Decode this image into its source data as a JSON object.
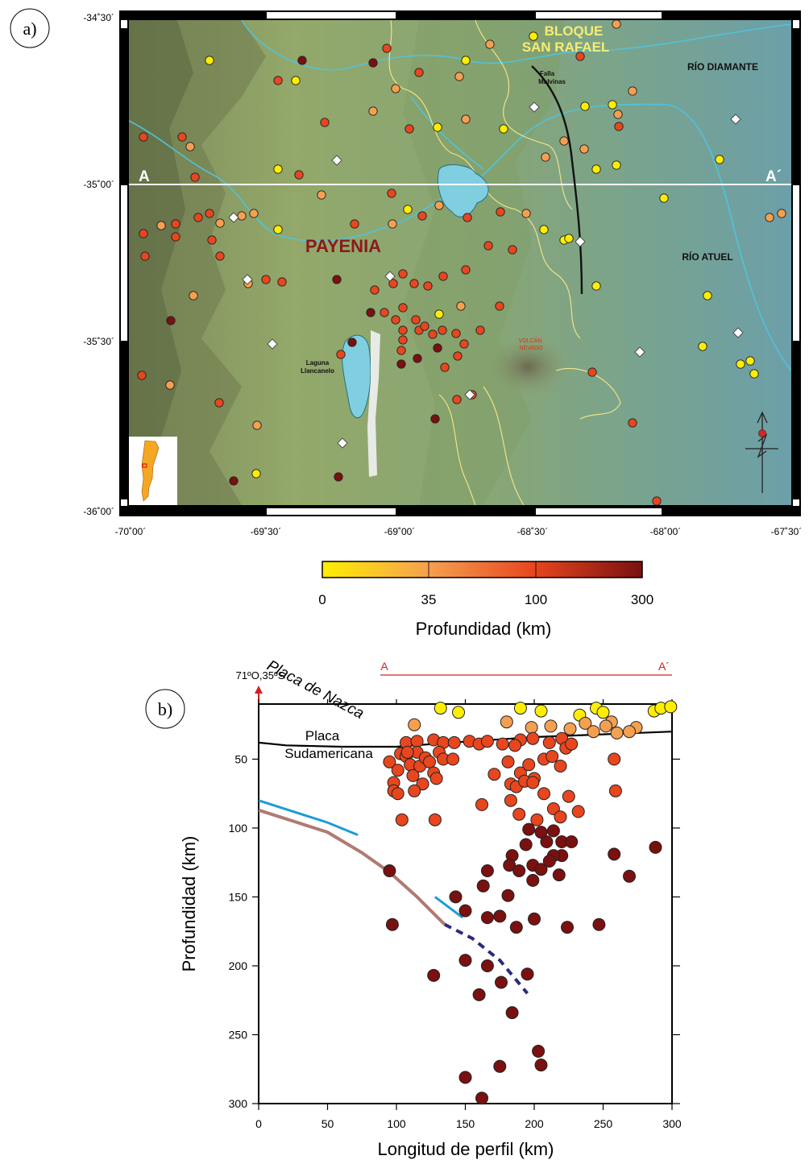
{
  "panel_a": {
    "label": "a)",
    "lat_ticks": [
      "-34˚30´",
      "-35˚00´",
      "-35˚30´",
      "-36˚00´"
    ],
    "lon_ticks": [
      "-70˚00´",
      "-69˚30´",
      "-69˚00´",
      "-68˚30´",
      "-68˚00´",
      "-67˚30´"
    ],
    "place_labels": {
      "bloque_line1": "BLOQUE",
      "bloque_line2": "SAN RAFAEL",
      "rio_diamante": "RÍO DIAMANTE",
      "falla_line1": "Falla",
      "falla_line2": "Malvinas",
      "payenia": "PAYENIA",
      "rio_atuel": "RÍO ATUEL",
      "volcan_line1": "VOLCÁN",
      "volcan_line2": "NEVADO",
      "laguna_line1": "Laguna",
      "laguna_line2": "Llancanelo",
      "a_start": "A",
      "a_end": "A´"
    },
    "colors": {
      "rivers": "#4fc3dc",
      "outcrop_lines": "#f5e78a",
      "lake": "#7fcfe0",
      "label_yellow": "#f7ec72",
      "label_red": "#8b1a1a",
      "volcano_label": "#e03010"
    },
    "colorbar": {
      "ticks": [
        "0",
        "35",
        "100",
        "300"
      ],
      "title": "Profundidad (km)",
      "colors": [
        "#ffee00",
        "#f5a050",
        "#e8461e",
        "#7a1010"
      ]
    },
    "diamond_marker": "white-diamond"
  },
  "panel_b": {
    "label": "b)",
    "origin_label": "71ºO,35ºS",
    "profile_a": "A",
    "profile_a_end": "A´",
    "plate_south_line1": "Placa",
    "plate_south_line2": "Sudamericana",
    "plate_nazca": "Placa de Nazca",
    "colors": {
      "profile_line": "#d42020",
      "origin_arrow": "#d42020",
      "moho": "#000000",
      "nazca": "#b07a72",
      "blue_slab": "#1e9bd7",
      "dashed_slab": "#2e2a7a"
    }
  },
  "chart_data": {
    "type": "scatter",
    "xlabel": "Longitud de perfil (km)",
    "ylabel": "Profundidad (km)",
    "xlim": [
      0,
      300
    ],
    "ylim": [
      300,
      10
    ],
    "x_ticks": [
      0,
      50,
      100,
      150,
      200,
      250,
      300
    ],
    "y_ticks": [
      50,
      100,
      150,
      200,
      250,
      300
    ],
    "points": [
      [
        132,
        13
      ],
      [
        145,
        16
      ],
      [
        190,
        13
      ],
      [
        205,
        15
      ],
      [
        233,
        18
      ],
      [
        245,
        13
      ],
      [
        250,
        16
      ],
      [
        256,
        23
      ],
      [
        287,
        15
      ],
      [
        292,
        13
      ],
      [
        299,
        12
      ],
      [
        113,
        25
      ],
      [
        180,
        23
      ],
      [
        198,
        27
      ],
      [
        212,
        26
      ],
      [
        226,
        28
      ],
      [
        237,
        24
      ],
      [
        252,
        26
      ],
      [
        274,
        27
      ],
      [
        243,
        30
      ],
      [
        260,
        31
      ],
      [
        269,
        30
      ],
      [
        107,
        38
      ],
      [
        115,
        37
      ],
      [
        127,
        36
      ],
      [
        134,
        38
      ],
      [
        142,
        38
      ],
      [
        153,
        37
      ],
      [
        160,
        39
      ],
      [
        166,
        37
      ],
      [
        177,
        39
      ],
      [
        190,
        36
      ],
      [
        199,
        35
      ],
      [
        211,
        38
      ],
      [
        220,
        35
      ],
      [
        186,
        40
      ],
      [
        95,
        52
      ],
      [
        98,
        67
      ],
      [
        101,
        58
      ],
      [
        103,
        46
      ],
      [
        107,
        48
      ],
      [
        110,
        54
      ],
      [
        112,
        62
      ],
      [
        115,
        45
      ],
      [
        117,
        55
      ],
      [
        119,
        68
      ],
      [
        121,
        49
      ],
      [
        124,
        52
      ],
      [
        127,
        60
      ],
      [
        129,
        64
      ],
      [
        131,
        45
      ],
      [
        134,
        50
      ],
      [
        141,
        50
      ],
      [
        98,
        73
      ],
      [
        101,
        75
      ],
      [
        108,
        45
      ],
      [
        113,
        73
      ],
      [
        171,
        61
      ],
      [
        181,
        52
      ],
      [
        190,
        60
      ],
      [
        196,
        54
      ],
      [
        200,
        64
      ],
      [
        207,
        50
      ],
      [
        213,
        48
      ],
      [
        219,
        55
      ],
      [
        223,
        42
      ],
      [
        227,
        39
      ],
      [
        258,
        50
      ],
      [
        183,
        68
      ],
      [
        187,
        70
      ],
      [
        193,
        66
      ],
      [
        199,
        67
      ],
      [
        207,
        75
      ],
      [
        214,
        86
      ],
      [
        219,
        92
      ],
      [
        225,
        77
      ],
      [
        232,
        88
      ],
      [
        259,
        73
      ],
      [
        162,
        83
      ],
      [
        183,
        80
      ],
      [
        189,
        90
      ],
      [
        196,
        101
      ],
      [
        202,
        94
      ],
      [
        209,
        110
      ],
      [
        214,
        102
      ],
      [
        220,
        120
      ],
      [
        104,
        94
      ],
      [
        128,
        94
      ],
      [
        184,
        120
      ],
      [
        194,
        112
      ],
      [
        199,
        127
      ],
      [
        205,
        103
      ],
      [
        214,
        120
      ],
      [
        220,
        110
      ],
      [
        227,
        110
      ],
      [
        258,
        119
      ],
      [
        269,
        135
      ],
      [
        288,
        114
      ],
      [
        95,
        131
      ],
      [
        166,
        131
      ],
      [
        182,
        127
      ],
      [
        189,
        131
      ],
      [
        199,
        138
      ],
      [
        205,
        130
      ],
      [
        211,
        124
      ],
      [
        218,
        134
      ],
      [
        97,
        170
      ],
      [
        143,
        150
      ],
      [
        150,
        160
      ],
      [
        163,
        142
      ],
      [
        166,
        165
      ],
      [
        175,
        164
      ],
      [
        181,
        149
      ],
      [
        187,
        172
      ],
      [
        200,
        166
      ],
      [
        224,
        172
      ],
      [
        247,
        170
      ],
      [
        127,
        207
      ],
      [
        150,
        196
      ],
      [
        160,
        221
      ],
      [
        166,
        200
      ],
      [
        176,
        212
      ],
      [
        184,
        234
      ],
      [
        195,
        206
      ],
      [
        150,
        281
      ],
      [
        162,
        296
      ],
      [
        175,
        273
      ],
      [
        203,
        262
      ],
      [
        205,
        272
      ]
    ]
  }
}
